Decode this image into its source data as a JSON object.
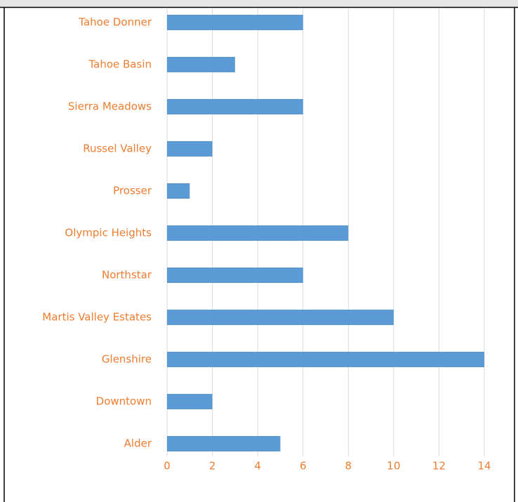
{
  "chart_data": {
    "type": "bar",
    "orientation": "horizontal",
    "categories": [
      "Tahoe Donner",
      "Tahoe Basin",
      "Sierra Meadows",
      "Russel Valley",
      "Prosser",
      "Olympic Heights",
      "Northstar",
      "Martis Valley Estates",
      "Glenshire",
      "Downtown",
      "Alder"
    ],
    "values": [
      6,
      3,
      6,
      2,
      1,
      8,
      6,
      10,
      14,
      2,
      5
    ],
    "color": "#5b9bd5",
    "xlim": [
      0,
      14
    ],
    "xticks": [
      0,
      2,
      4,
      6,
      8,
      10,
      12,
      14
    ],
    "grid": true
  }
}
